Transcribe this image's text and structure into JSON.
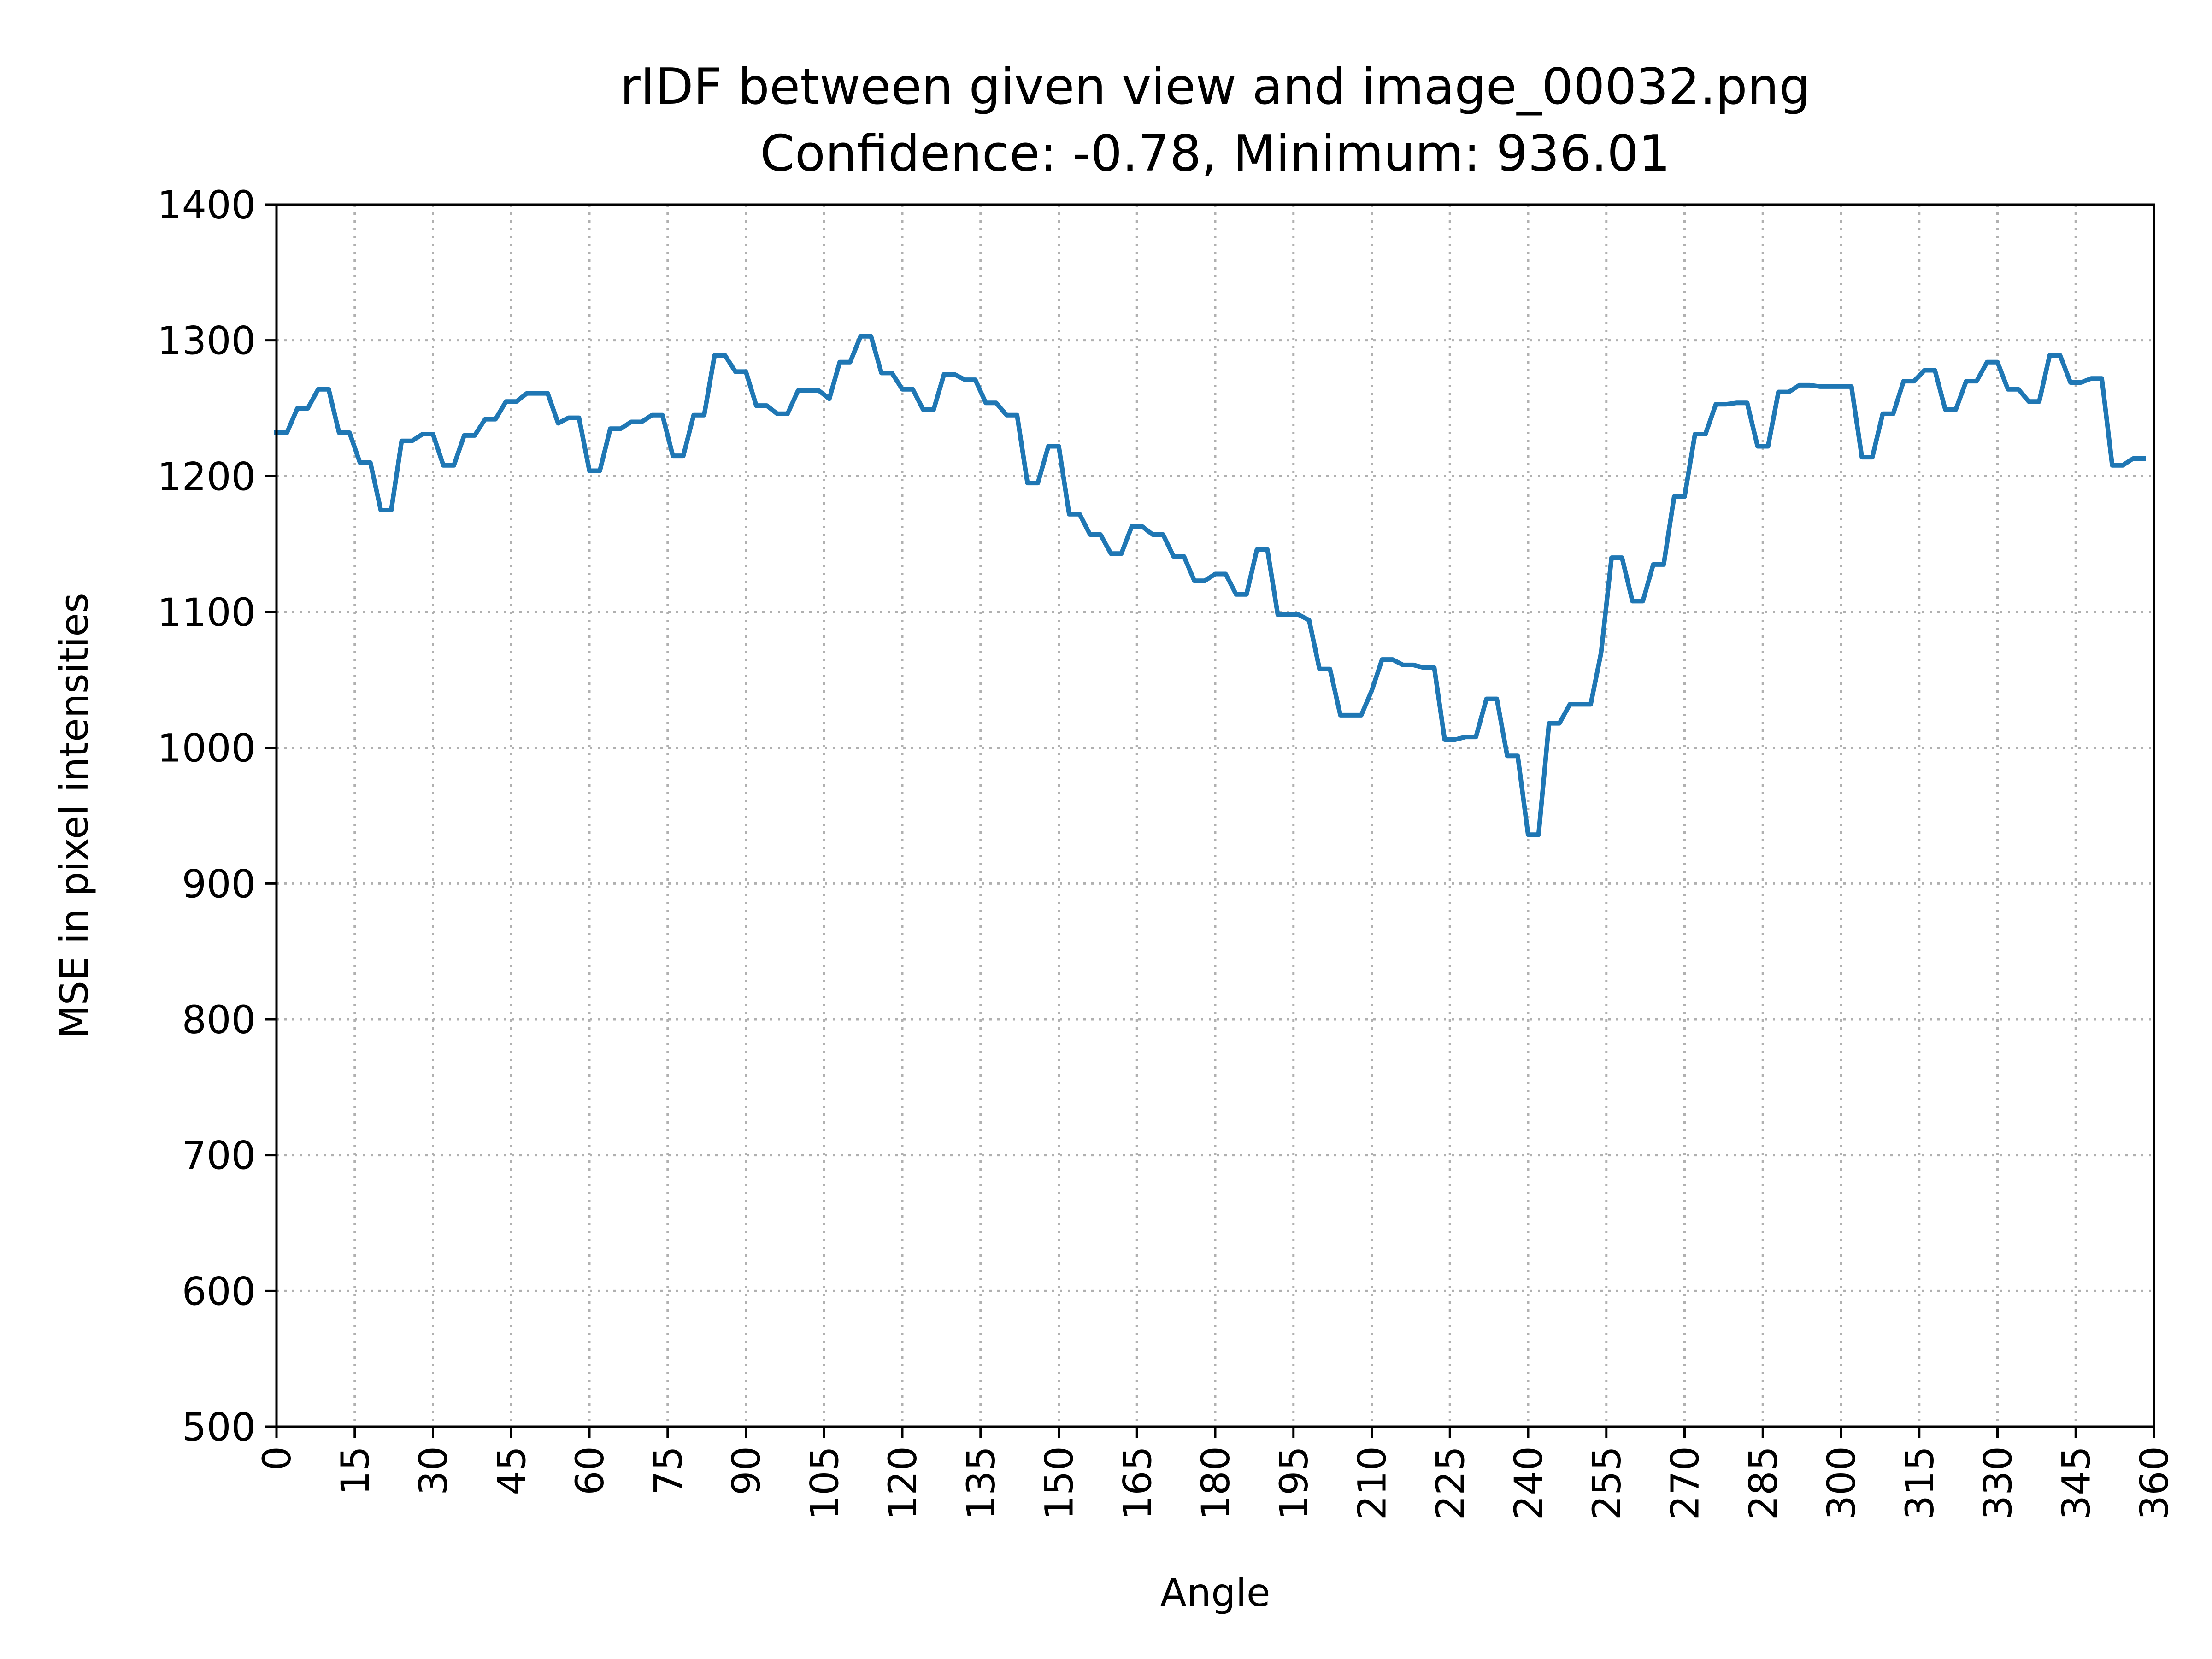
{
  "chart_data": {
    "type": "line",
    "title": "rIDF between given view and image_00032.png",
    "subtitle": "Confidence: -0.78, Minimum: 936.01",
    "xlabel": "Angle",
    "ylabel": "MSE in pixel intensities",
    "xlim": [
      0,
      360
    ],
    "ylim": [
      500,
      1400
    ],
    "xticks": [
      0,
      15,
      30,
      45,
      60,
      75,
      90,
      105,
      120,
      135,
      150,
      165,
      180,
      195,
      210,
      225,
      240,
      255,
      270,
      285,
      300,
      315,
      330,
      345,
      360
    ],
    "yticks": [
      500,
      600,
      700,
      800,
      900,
      1000,
      1100,
      1200,
      1300,
      1400
    ],
    "grid": true,
    "colors": {
      "series": "#1f77b4"
    },
    "series": [
      {
        "x": [
          0,
          2,
          4,
          6,
          8,
          10,
          12,
          14,
          16,
          18,
          20,
          22,
          24,
          26,
          28,
          30,
          32,
          34,
          36,
          38,
          40,
          42,
          44,
          46,
          48,
          50,
          52,
          54,
          56,
          58,
          60,
          62,
          64,
          66,
          68,
          70,
          72,
          74,
          76,
          78,
          80,
          82,
          84,
          86,
          88,
          90,
          92,
          94,
          96,
          98,
          100,
          102,
          104,
          106,
          108,
          110,
          112,
          114,
          116,
          118,
          120,
          122,
          124,
          126,
          128,
          130,
          132,
          134,
          136,
          138,
          140,
          142,
          144,
          146,
          148,
          150,
          152,
          154,
          156,
          158,
          160,
          162,
          164,
          166,
          168,
          170,
          172,
          174,
          176,
          178,
          180,
          182,
          184,
          186,
          188,
          190,
          192,
          194,
          196,
          198,
          200,
          202,
          204,
          206,
          208,
          210,
          212,
          214,
          216,
          218,
          220,
          222,
          224,
          226,
          228,
          230,
          232,
          234,
          236,
          238,
          240,
          242,
          244,
          246,
          248,
          250,
          252,
          254,
          256,
          258,
          260,
          262,
          264,
          266,
          268,
          270,
          272,
          274,
          276,
          278,
          280,
          282,
          284,
          286,
          288,
          290,
          292,
          294,
          296,
          298,
          300,
          302,
          304,
          306,
          308,
          310,
          312,
          314,
          316,
          318,
          320,
          322,
          324,
          326,
          328,
          330,
          332,
          334,
          336,
          338,
          340,
          342,
          344,
          346,
          348,
          350,
          352,
          354,
          356,
          358
        ],
        "y": [
          1232,
          1232,
          1250,
          1250,
          1264,
          1264,
          1232,
          1232,
          1210,
          1210,
          1175,
          1175,
          1226,
          1226,
          1231,
          1231,
          1208,
          1208,
          1230,
          1230,
          1242,
          1242,
          1255,
          1255,
          1261,
          1261,
          1261,
          1239,
          1243,
          1243,
          1204,
          1204,
          1235,
          1235,
          1240,
          1240,
          1245,
          1245,
          1215,
          1215,
          1245,
          1245,
          1289,
          1289,
          1277,
          1277,
          1252,
          1252,
          1246,
          1246,
          1263,
          1263,
          1263,
          1257,
          1284,
          1284,
          1303,
          1303,
          1276,
          1276,
          1264,
          1264,
          1249,
          1249,
          1275,
          1275,
          1271,
          1271,
          1254,
          1254,
          1245,
          1245,
          1195,
          1195,
          1222,
          1222,
          1172,
          1172,
          1157,
          1157,
          1143,
          1143,
          1163,
          1163,
          1157,
          1157,
          1141,
          1141,
          1123,
          1123,
          1128,
          1128,
          1113,
          1113,
          1146,
          1146,
          1098,
          1098,
          1098,
          1094,
          1058,
          1058,
          1024,
          1024,
          1024,
          1042,
          1065,
          1065,
          1061,
          1061,
          1059,
          1059,
          1006,
          1006,
          1008,
          1008,
          1036,
          1036,
          994,
          994,
          936,
          936,
          1018,
          1018,
          1032,
          1032,
          1032,
          1070,
          1140,
          1140,
          1108,
          1108,
          1135,
          1135,
          1185,
          1185,
          1231,
          1231,
          1253,
          1253,
          1254,
          1254,
          1222,
          1222,
          1262,
          1262,
          1267,
          1267,
          1266,
          1266,
          1266,
          1266,
          1214,
          1214,
          1246,
          1246,
          1270,
          1270,
          1278,
          1278,
          1249,
          1249,
          1270,
          1270,
          1284,
          1284,
          1264,
          1264,
          1255,
          1255,
          1289,
          1289,
          1269,
          1269,
          1272,
          1272,
          1208,
          1208,
          1213,
          1213
        ]
      }
    ]
  }
}
